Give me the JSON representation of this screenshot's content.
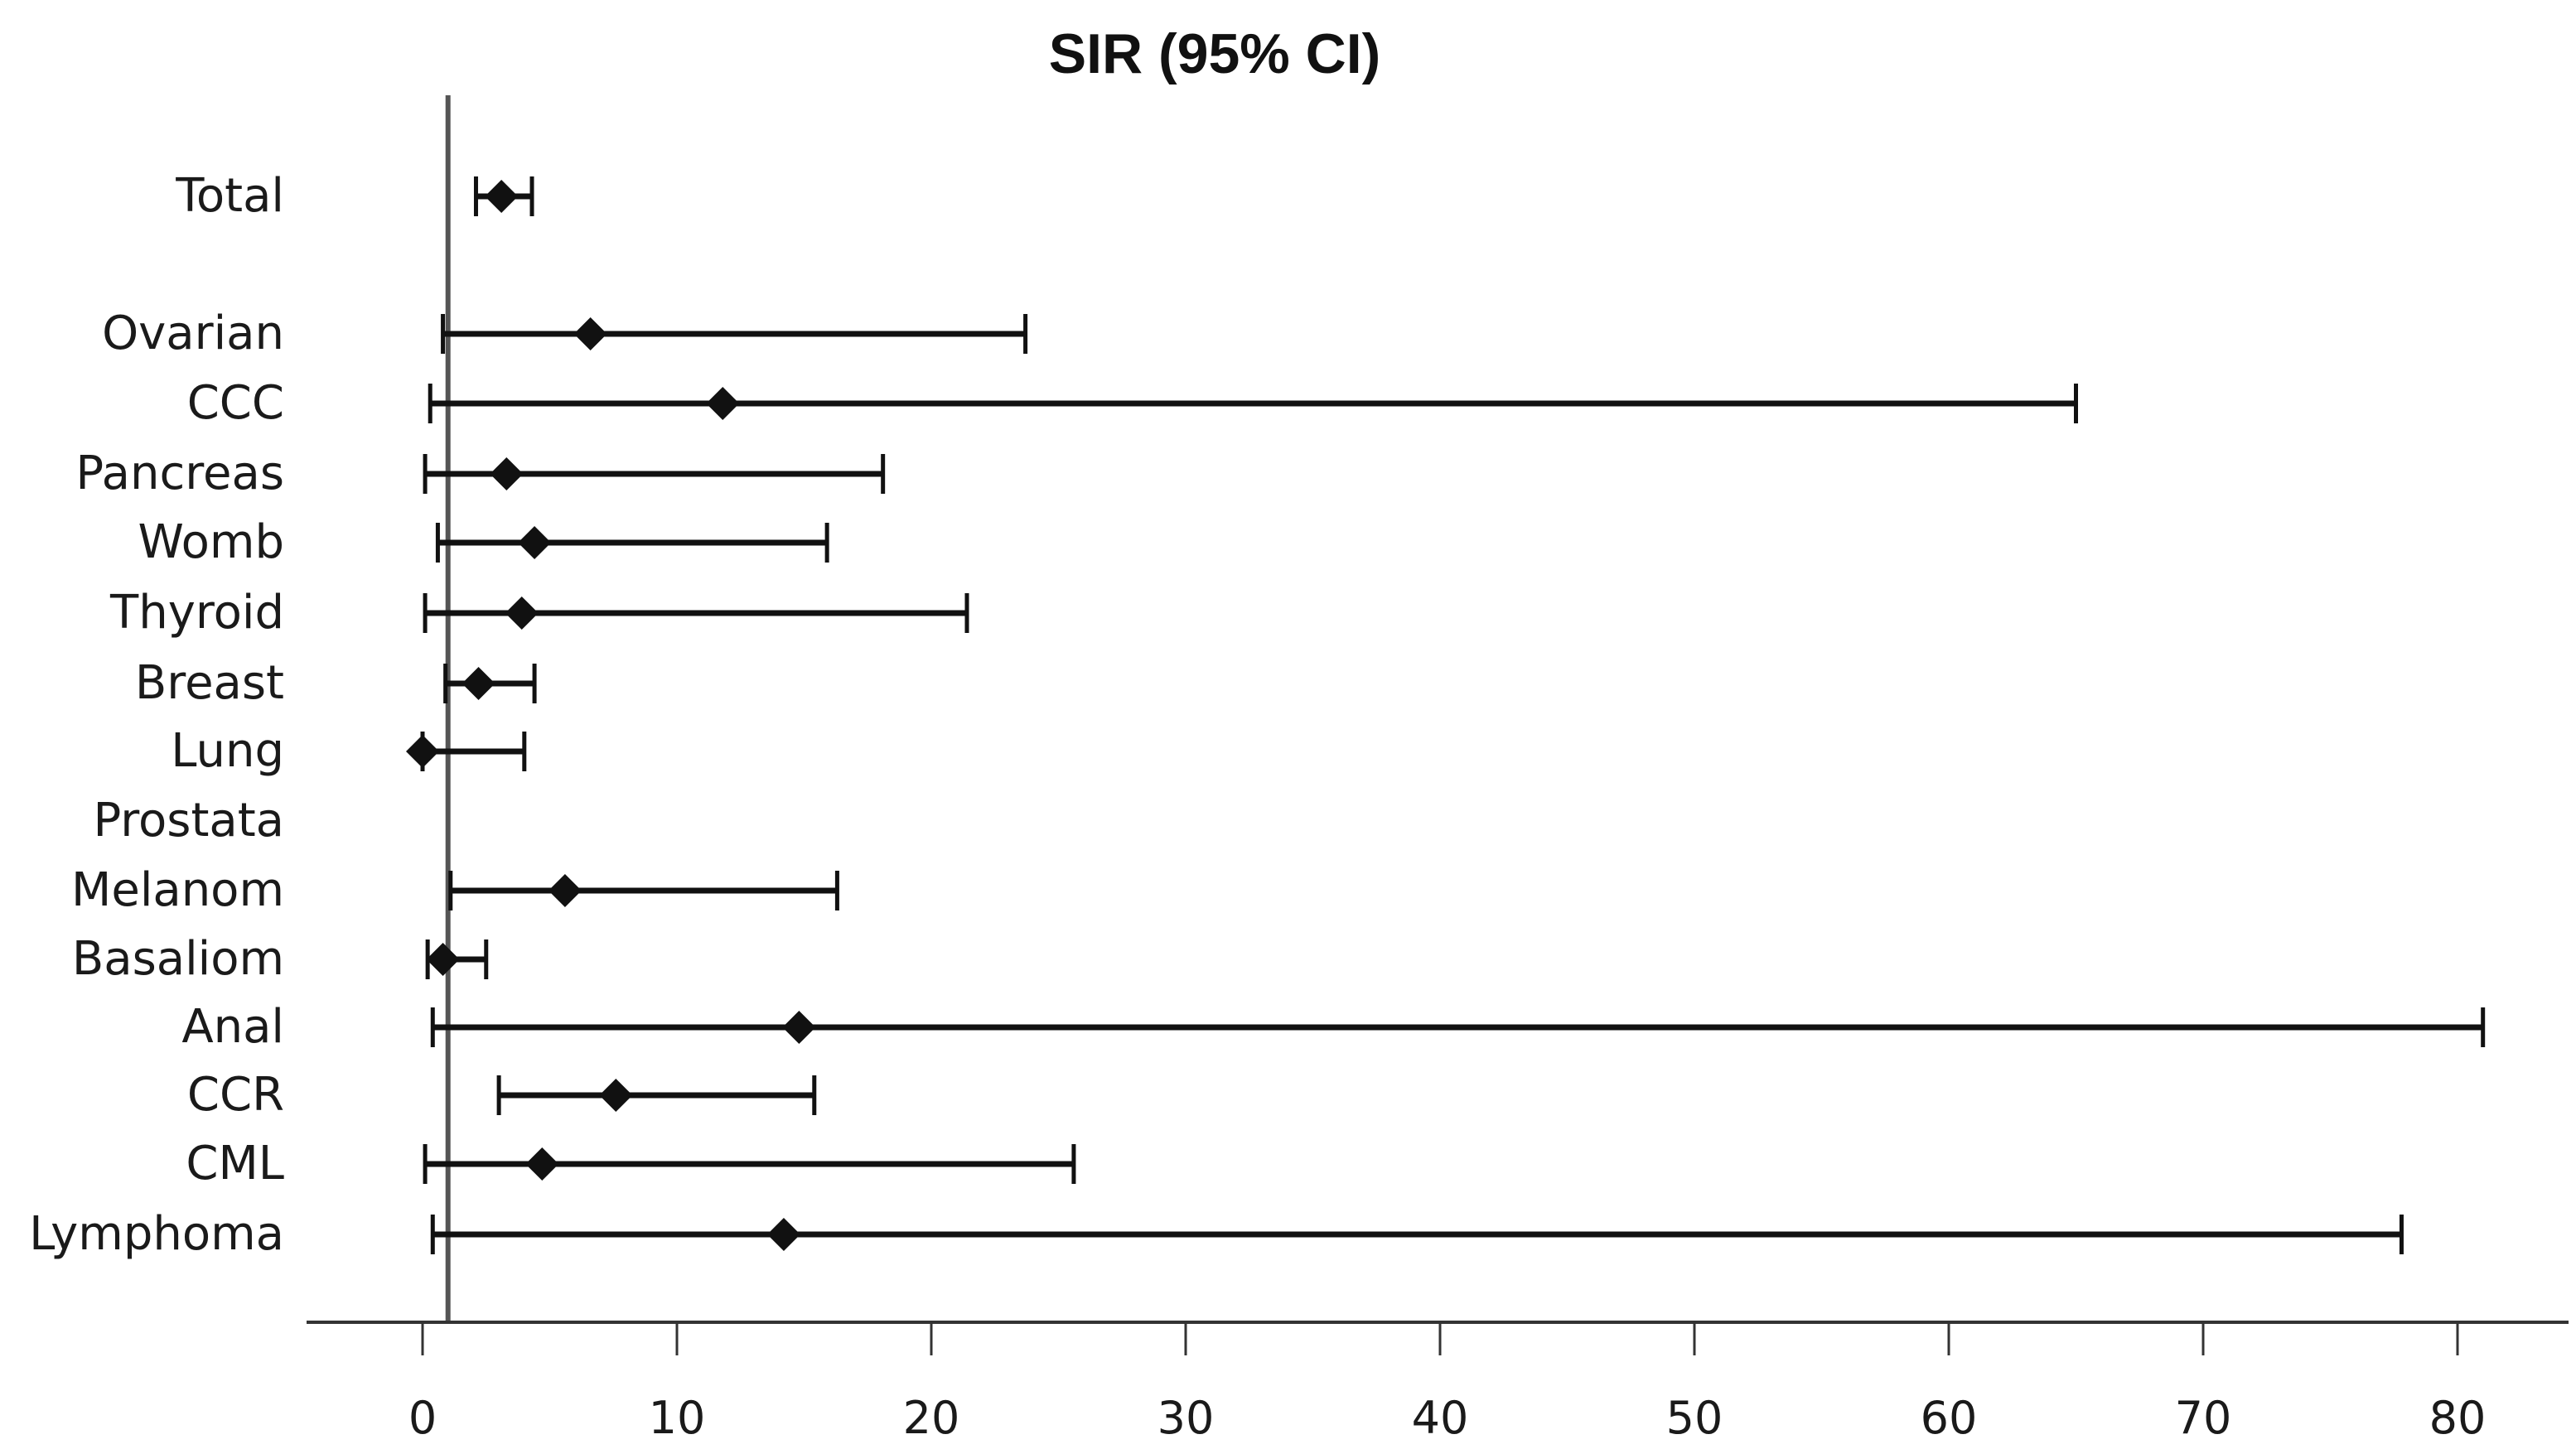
{
  "chart_data": {
    "type": "forest",
    "title": "SIR (95% CI)",
    "xlabel": "",
    "ylabel": "",
    "xlim": [
      -5,
      85
    ],
    "x_ticks": [
      0,
      10,
      20,
      30,
      40,
      50,
      60,
      70,
      80
    ],
    "reference_line": 1,
    "grid": false,
    "marker": "diamond",
    "rows": [
      {
        "label": "Total",
        "estimate": 3.1,
        "lower": 2.1,
        "upper": 4.3
      },
      {
        "label": "Ovarian",
        "estimate": 6.6,
        "lower": 0.8,
        "upper": 23.7
      },
      {
        "label": "CCC",
        "estimate": 11.8,
        "lower": 0.3,
        "upper": 65.0
      },
      {
        "label": "Pancreas",
        "estimate": 3.3,
        "lower": 0.1,
        "upper": 18.1
      },
      {
        "label": "Womb",
        "estimate": 4.4,
        "lower": 0.6,
        "upper": 15.9
      },
      {
        "label": "Thyroid",
        "estimate": 3.9,
        "lower": 0.1,
        "upper": 21.4
      },
      {
        "label": "Breast",
        "estimate": 2.2,
        "lower": 0.9,
        "upper": 4.4
      },
      {
        "label": "Lung",
        "estimate": 0.0,
        "lower": 0.0,
        "upper": 4.0
      },
      {
        "label": "Prostata",
        "estimate": null,
        "lower": null,
        "upper": null
      },
      {
        "label": "Melanom",
        "estimate": 5.6,
        "lower": 1.1,
        "upper": 16.3
      },
      {
        "label": "Basaliom",
        "estimate": 0.8,
        "lower": 0.2,
        "upper": 2.5
      },
      {
        "label": "Anal",
        "estimate": 14.8,
        "lower": 0.4,
        "upper": 81.0
      },
      {
        "label": "CCR",
        "estimate": 7.6,
        "lower": 3.0,
        "upper": 15.4
      },
      {
        "label": "CML",
        "estimate": 4.7,
        "lower": 0.1,
        "upper": 25.6
      },
      {
        "label": "Lymphoma",
        "estimate": 14.2,
        "lower": 0.4,
        "upper": 77.8
      }
    ]
  }
}
